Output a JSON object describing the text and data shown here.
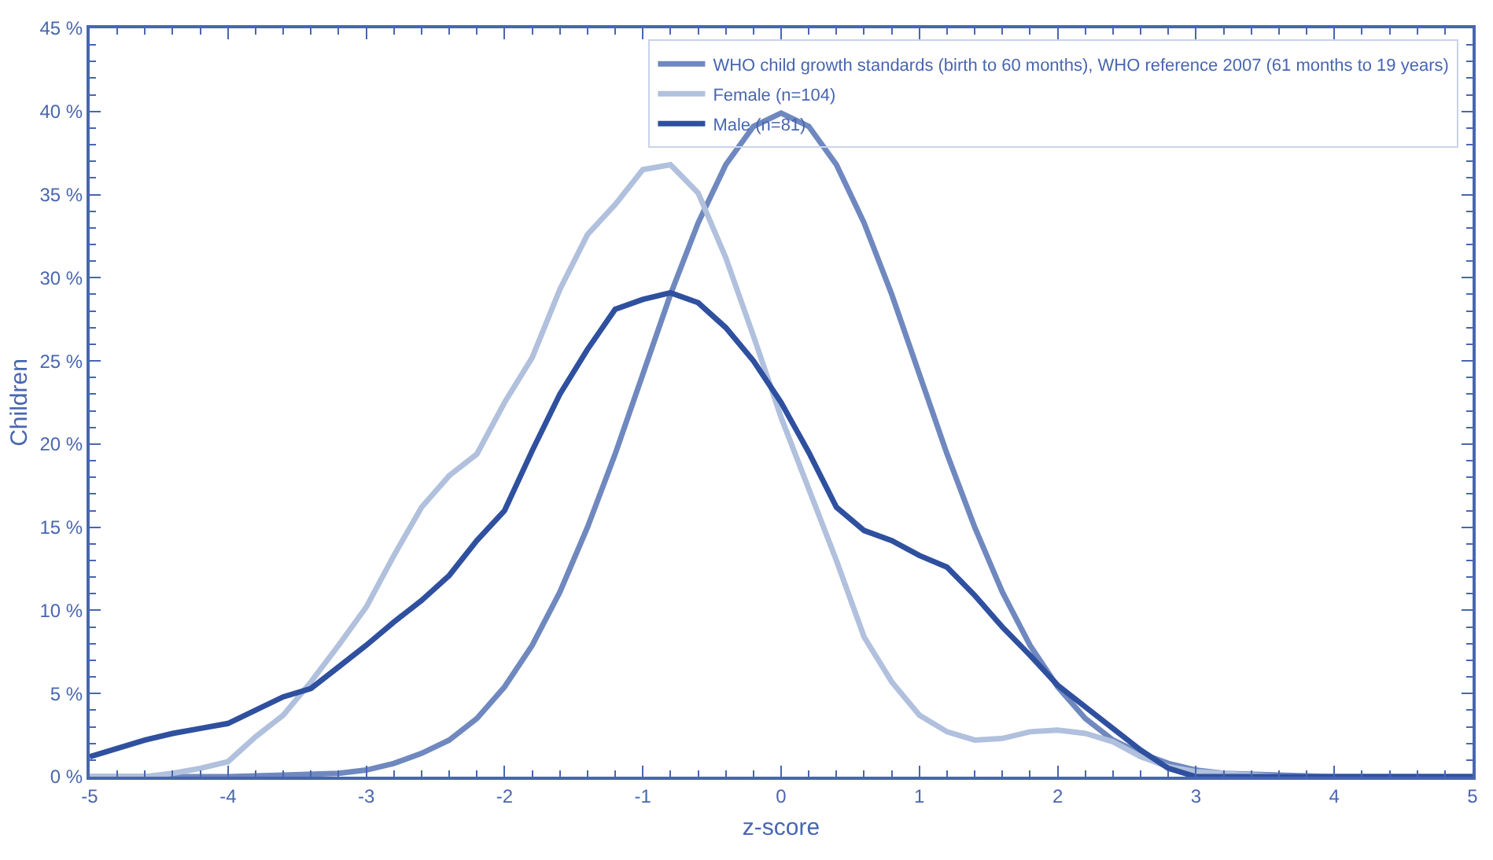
{
  "chart_data": {
    "type": "line",
    "xlabel": "z-score",
    "ylabel": "Children",
    "legend": "top right",
    "grid": false,
    "line_style": "solid",
    "marker": "none",
    "xlim": [
      -5,
      5
    ],
    "xticks": [
      -5,
      -4,
      -3,
      -2,
      -1,
      0,
      1,
      2,
      3,
      4,
      5
    ],
    "ylim": [
      0,
      45
    ],
    "yticks": [
      {
        "value": 0,
        "label": "0 %"
      },
      {
        "value": 5,
        "label": "5 %"
      },
      {
        "value": 10,
        "label": "10 %"
      },
      {
        "value": 15,
        "label": "15 %"
      },
      {
        "value": 20,
        "label": "20 %"
      },
      {
        "value": 25,
        "label": "25 %"
      },
      {
        "value": 30,
        "label": "30 %"
      },
      {
        "value": 35,
        "label": "35 %"
      },
      {
        "value": 40,
        "label": "40 %"
      },
      {
        "value": 45,
        "label": "45 %"
      }
    ],
    "series": [
      {
        "name": "WHO child growth standards (birth to 60 months), WHO reference 2007 (61 months to 19 years)",
        "color": "#6f88bf",
        "x": [
          -5,
          -4,
          -3.6,
          -3.2,
          -3,
          -2.8,
          -2.6,
          -2.4,
          -2.2,
          -2,
          -1.8,
          -1.6,
          -1.4,
          -1.2,
          -1,
          -0.8,
          -0.6,
          -0.4,
          -0.2,
          0,
          0.2,
          0.4,
          0.6,
          0.8,
          1,
          1.2,
          1.4,
          1.6,
          1.8,
          2,
          2.2,
          2.4,
          2.6,
          2.8,
          3,
          3.2,
          3.6,
          4,
          5
        ],
        "values": [
          0,
          0,
          0.1,
          0.2,
          0.4,
          0.8,
          1.4,
          2.2,
          3.5,
          5.4,
          7.9,
          11.1,
          15,
          19.4,
          24.2,
          29,
          33.3,
          36.8,
          39.1,
          39.9,
          39.1,
          36.8,
          33.3,
          29,
          24.2,
          19.4,
          15,
          11.1,
          7.9,
          5.4,
          3.5,
          2.2,
          1.4,
          0.8,
          0.4,
          0.2,
          0.1,
          0,
          0
        ]
      },
      {
        "name": "Female (n=104)",
        "color": "#b0c0dd",
        "x": [
          -5,
          -4.6,
          -4.4,
          -4.2,
          -4,
          -3.8,
          -3.6,
          -3.4,
          -3.2,
          -3,
          -2.8,
          -2.6,
          -2.4,
          -2.2,
          -2,
          -1.8,
          -1.6,
          -1.4,
          -1.2,
          -1,
          -0.8,
          -0.6,
          -0.4,
          -0.2,
          0,
          0.2,
          0.4,
          0.6,
          0.8,
          1,
          1.2,
          1.4,
          1.6,
          1.8,
          2,
          2.2,
          2.4,
          2.6,
          2.8,
          3,
          3.2,
          3.4,
          3.6,
          5
        ],
        "values": [
          0,
          0,
          0.2,
          0.5,
          0.9,
          2.4,
          3.7,
          5.7,
          7.9,
          10.2,
          13.3,
          16.2,
          18.1,
          19.4,
          22.5,
          25.2,
          29.3,
          32.6,
          34.4,
          36.5,
          36.8,
          35.1,
          31.2,
          26.5,
          21.6,
          17.3,
          13,
          8.4,
          5.7,
          3.7,
          2.7,
          2.2,
          2.3,
          2.7,
          2.8,
          2.6,
          2.1,
          1.2,
          0.6,
          0.3,
          0.2,
          0.1,
          0,
          0
        ]
      },
      {
        "name": "Male (n=81)",
        "color": "#2f509f",
        "x": [
          -5,
          -4.6,
          -4.4,
          -4.2,
          -4,
          -3.8,
          -3.6,
          -3.4,
          -3.2,
          -3,
          -2.8,
          -2.6,
          -2.4,
          -2.2,
          -2,
          -1.8,
          -1.6,
          -1.4,
          -1.2,
          -1,
          -0.8,
          -0.6,
          -0.4,
          -0.2,
          0,
          0.2,
          0.4,
          0.6,
          0.8,
          1,
          1.2,
          1.4,
          1.6,
          1.8,
          2,
          2.2,
          2.4,
          2.6,
          2.8,
          3,
          5
        ],
        "values": [
          1.2,
          2.2,
          2.6,
          2.9,
          3.2,
          4,
          4.8,
          5.3,
          6.6,
          7.9,
          9.3,
          10.6,
          12.1,
          14.2,
          16,
          19.6,
          23,
          25.7,
          28.1,
          28.7,
          29.1,
          28.5,
          27,
          25,
          22.5,
          19.5,
          16.2,
          14.8,
          14.2,
          13.3,
          12.6,
          10.9,
          9,
          7.3,
          5.5,
          4.2,
          2.9,
          1.6,
          0.5,
          0,
          0
        ]
      }
    ]
  }
}
